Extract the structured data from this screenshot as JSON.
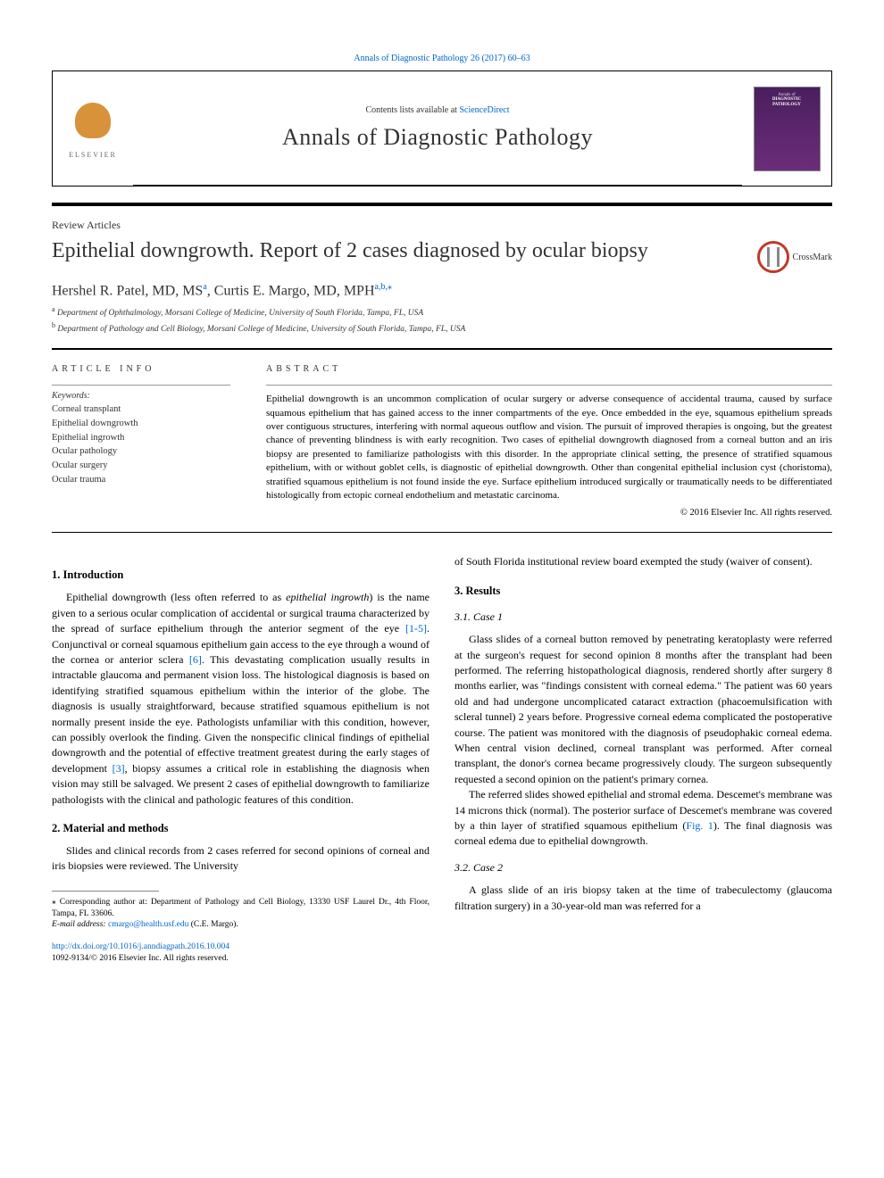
{
  "topLink": {
    "journal": "Annals of Diagnostic Pathology",
    "citation": "26 (2017) 60–63"
  },
  "header": {
    "contentsPrefix": "Contents lists available at",
    "contentsLink": "ScienceDirect",
    "journalName": "Annals of Diagnostic Pathology",
    "elsevier": "ELSEVIER",
    "coverTop": "Annals of",
    "coverTitle": "DIAGNOSTIC\nPATHOLOGY"
  },
  "articleType": "Review Articles",
  "title": "Epithelial downgrowth. Report of 2 cases diagnosed by ocular biopsy",
  "crossmark": "CrossMark",
  "authors": {
    "a1_name": "Hershel R. Patel, MD, MS",
    "a1_sup": "a",
    "sep": ", ",
    "a2_name": "Curtis E. Margo, MD, MPH",
    "a2_sup": "a,b,",
    "star": "⁎"
  },
  "affiliations": {
    "a": "Department of Ophthalmology, Morsani College of Medicine, University of South Florida, Tampa, FL, USA",
    "b": "Department of Pathology and Cell Biology, Morsani College of Medicine, University of South Florida, Tampa, FL, USA"
  },
  "info": {
    "heading": "ARTICLE INFO",
    "keywordsLabel": "Keywords:",
    "keywords": [
      "Corneal transplant",
      "Epithelial downgrowth",
      "Epithelial ingrowth",
      "Ocular pathology",
      "Ocular surgery",
      "Ocular trauma"
    ]
  },
  "abstract": {
    "heading": "ABSTRACT",
    "text": "Epithelial downgrowth is an uncommon complication of ocular surgery or adverse consequence of accidental trauma, caused by surface squamous epithelium that has gained access to the inner compartments of the eye. Once embedded in the eye, squamous epithelium spreads over contiguous structures, interfering with normal aqueous outflow and vision. The pursuit of improved therapies is ongoing, but the greatest chance of preventing blindness is with early recognition. Two cases of epithelial downgrowth diagnosed from a corneal button and an iris biopsy are presented to familiarize pathologists with this disorder. In the appropriate clinical setting, the presence of stratified squamous epithelium, with or without goblet cells, is diagnostic of epithelial downgrowth. Other than congenital epithelial inclusion cyst (choristoma), stratified squamous epithelium is not found inside the eye. Surface epithelium introduced surgically or traumatically needs to be differentiated histologically from ectopic corneal endothelium and metastatic carcinoma.",
    "copyright": "© 2016 Elsevier Inc. All rights reserved."
  },
  "sections": {
    "intro": {
      "heading": "1. Introduction",
      "p1a": "Epithelial downgrowth (less often referred to as ",
      "p1i": "epithelial ingrowth",
      "p1b": ") is the name given to a serious ocular complication of accidental or surgical trauma characterized by the spread of surface epithelium through the anterior segment of the eye ",
      "ref1": "[1-5]",
      "p1c": ". Conjunctival or corneal squamous epithelium gain access to the eye through a wound of the cornea or anterior sclera ",
      "ref2": "[6]",
      "p1d": ". This devastating complication usually results in intractable glaucoma and permanent vision loss. The histological diagnosis is based on identifying stratified squamous epithelium within the interior of the globe. The diagnosis is usually straightforward, because stratified squamous epithelium is not normally present inside the eye. Pathologists unfamiliar with this condition, however, can possibly overlook the finding. Given the nonspecific clinical findings of epithelial downgrowth and the potential of effective treatment greatest during the early stages of development ",
      "ref3": "[3]",
      "p1e": ", biopsy assumes a critical role in establishing the diagnosis when vision may still be salvaged. We present 2 cases of epithelial downgrowth to familiarize pathologists with the clinical and pathologic features of this condition."
    },
    "methods": {
      "heading": "2. Material and methods",
      "p1": "Slides and clinical records from 2 cases referred for second opinions of corneal and iris biopsies were reviewed. The University",
      "p2": "of South Florida institutional review board exempted the study (waiver of consent)."
    },
    "results": {
      "heading": "3. Results"
    },
    "case1": {
      "heading": "3.1. Case 1",
      "p1": "Glass slides of a corneal button removed by penetrating keratoplasty were referred at the surgeon's request for second opinion 8 months after the transplant had been performed. The referring histopathological diagnosis, rendered shortly after surgery 8 months earlier, was \"findings consistent with corneal edema.\" The patient was 60 years old and had undergone uncomplicated cataract extraction (phacoemulsification with scleral tunnel) 2 years before. Progressive corneal edema complicated the postoperative course. The patient was monitored with the diagnosis of pseudophakic corneal edema. When central vision declined, corneal transplant was performed. After corneal transplant, the donor's cornea became progressively cloudy. The surgeon subsequently requested a second opinion on the patient's primary cornea.",
      "p2a": "The referred slides showed epithelial and stromal edema. Descemet's membrane was 14 microns thick (normal). The posterior surface of Descemet's membrane was covered by a thin layer of stratified squamous epithelium (",
      "fig1": "Fig. 1",
      "p2b": "). The final diagnosis was corneal edema due to epithelial downgrowth."
    },
    "case2": {
      "heading": "3.2. Case 2",
      "p1": "A glass slide of an iris biopsy taken at the time of trabeculectomy (glaucoma filtration surgery) in a 30-year-old man was referred for a"
    }
  },
  "footnotes": {
    "corr": "⁎ Corresponding author at: Department of Pathology and Cell Biology, 13330 USF Laurel Dr., 4th Floor, Tampa, FL 33606.",
    "emailLabel": "E-mail address:",
    "email": "cmargo@health.usf.edu",
    "emailAfter": "(C.E. Margo)."
  },
  "footer": {
    "doi": "http://dx.doi.org/10.1016/j.anndiagpath.2016.10.004",
    "issn": "1092-9134/© 2016 Elsevier Inc. All rights reserved."
  },
  "colors": {
    "link": "#0066cc",
    "text": "#000000",
    "heading": "#333333",
    "coverBg": "#4a1e5e",
    "crossmarkRing": "#c0392b"
  },
  "typography": {
    "titleSize": 24,
    "journalNameSize": 26,
    "bodySize": 12,
    "abstractSize": 11,
    "smallSize": 10
  }
}
